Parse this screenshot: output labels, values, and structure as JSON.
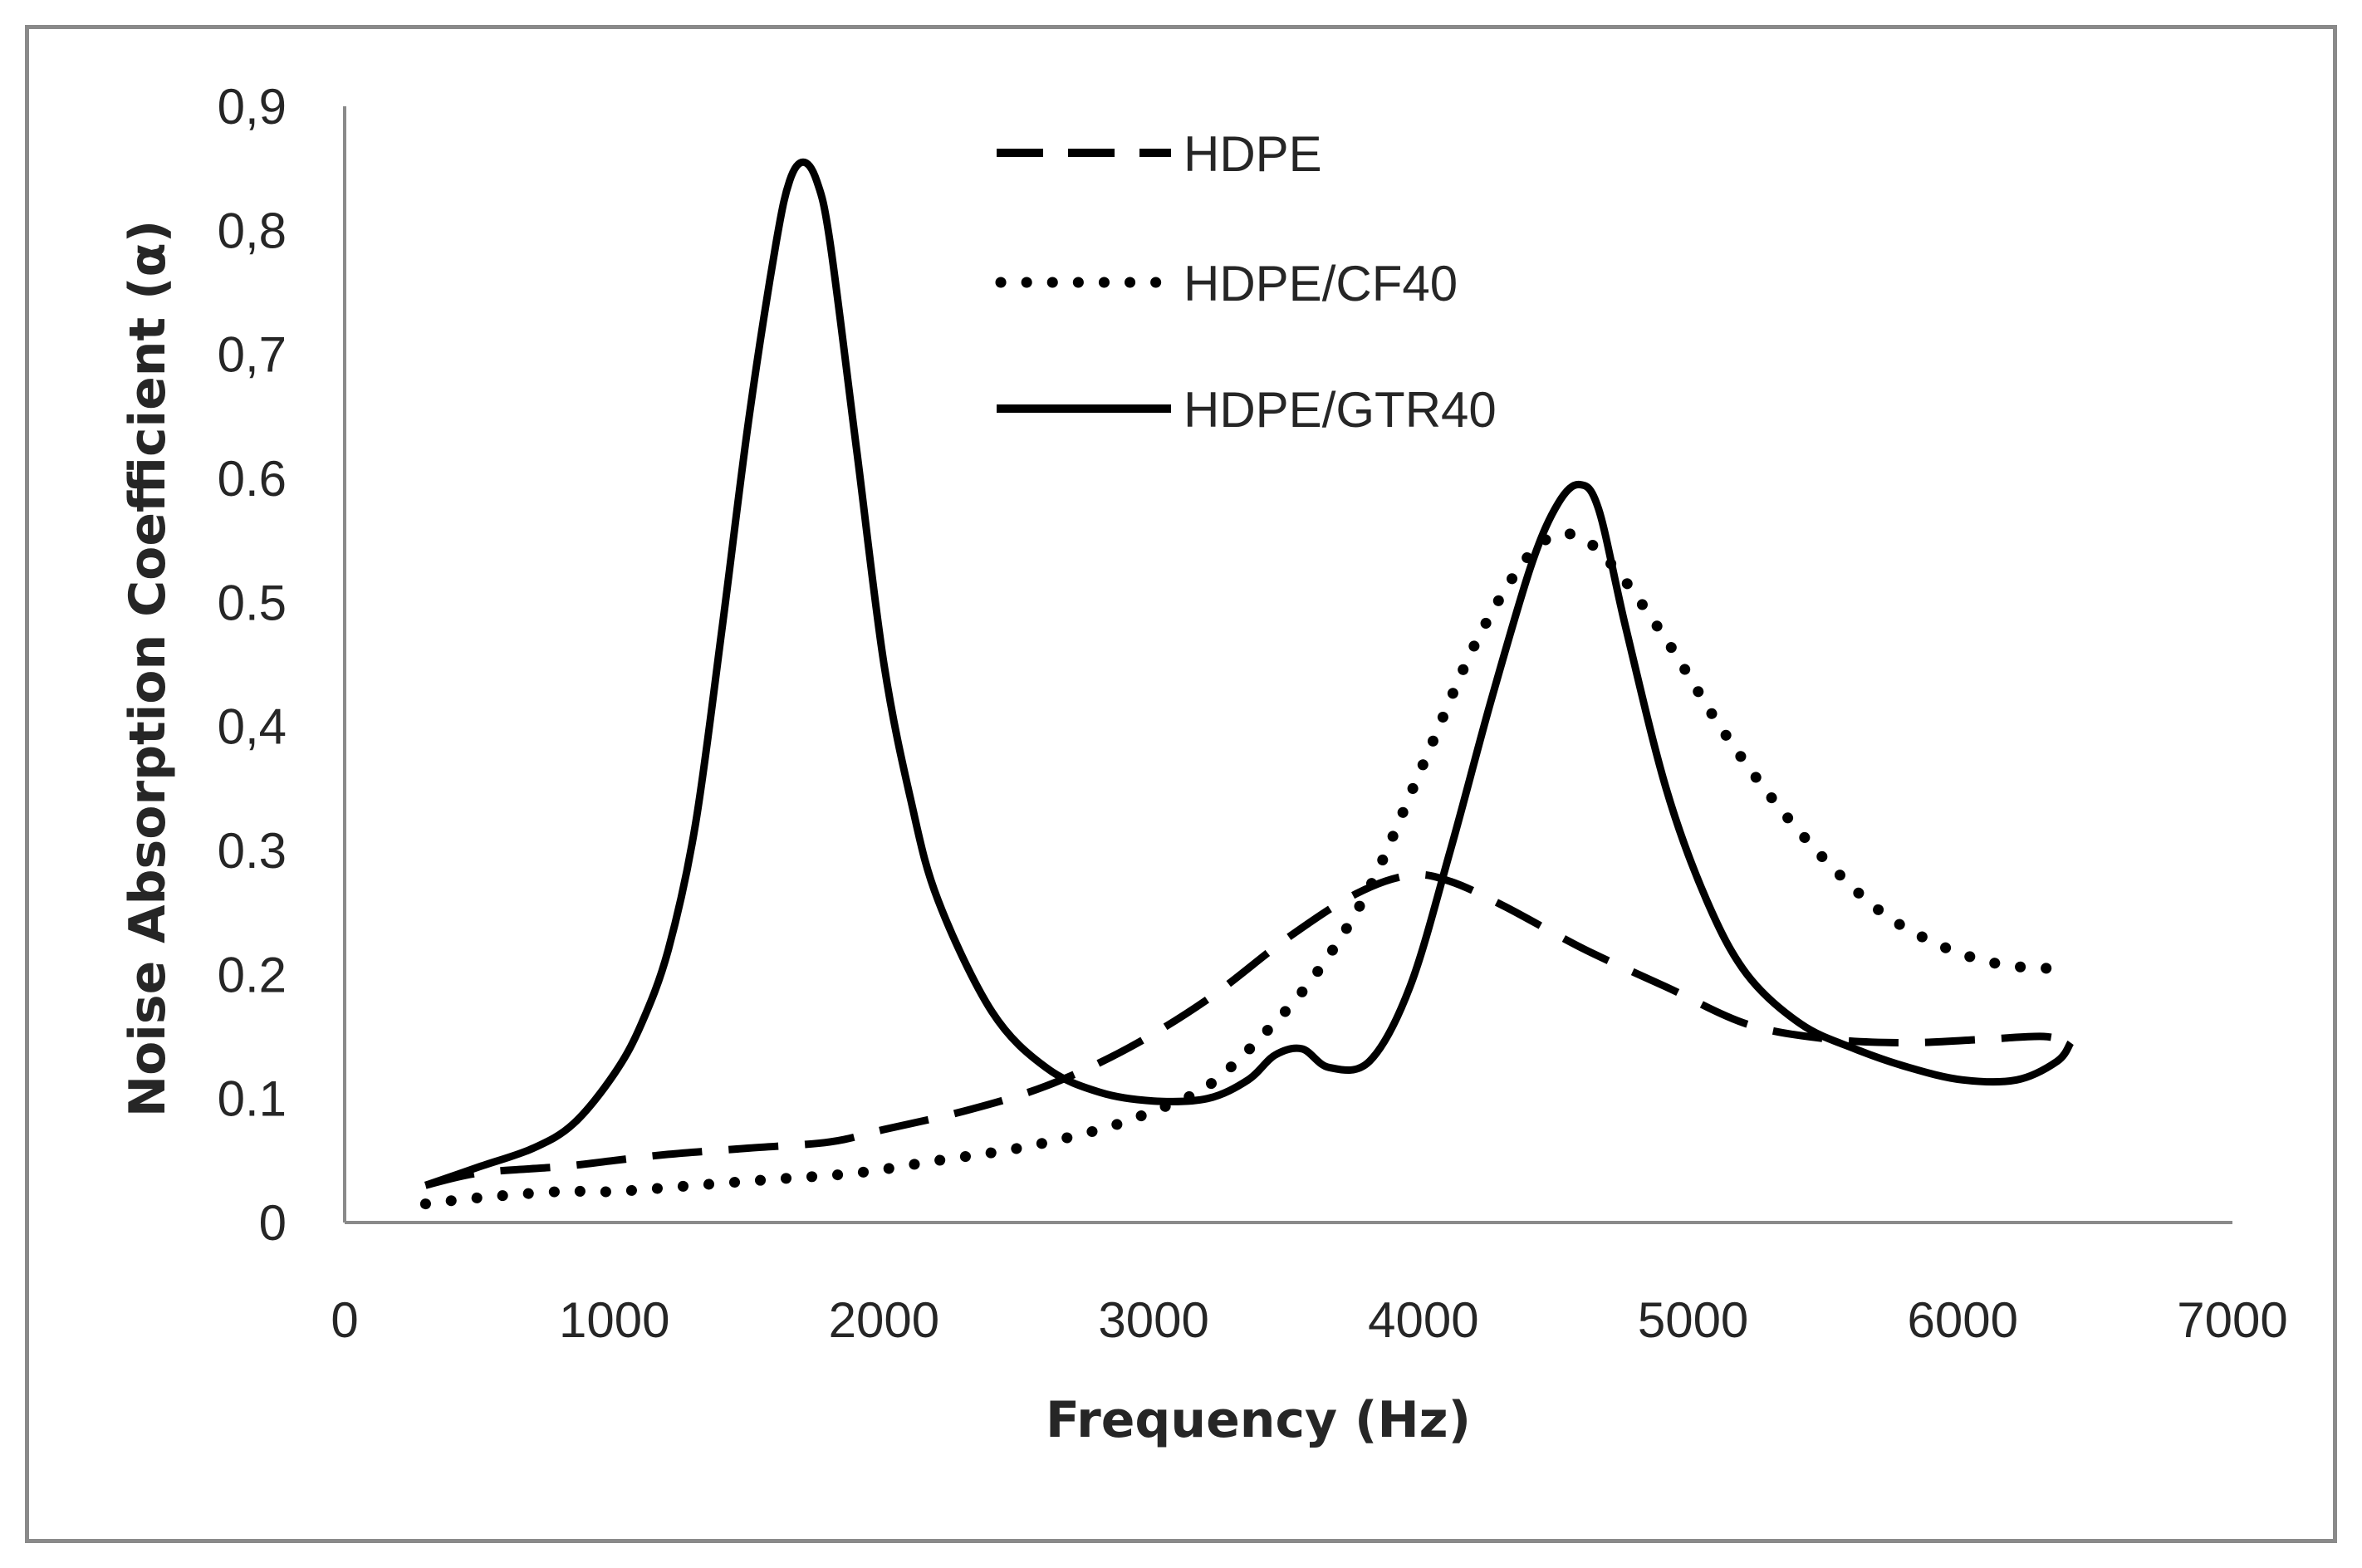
{
  "chart_data": {
    "type": "line",
    "title": "",
    "xlabel": "Frequency (Hz)",
    "ylabel": "Noise Absorption Coefficient (α)",
    "xlim": [
      0,
      7000
    ],
    "ylim": [
      0,
      0.9
    ],
    "x_ticks": [
      "0",
      "1000",
      "2000",
      "3000",
      "4000",
      "5000",
      "6000",
      "7000"
    ],
    "y_ticks": [
      "0",
      "0.1",
      "0.2",
      "0.3",
      "0,4",
      "0.5",
      "0.6",
      "0,7",
      "0,8",
      "0,9"
    ],
    "grid": false,
    "legend_position": "top-center",
    "series": [
      {
        "name": "HDPE",
        "style": "dashed",
        "color": "#000000",
        "x": [
          300,
          500,
          800,
          1000,
          1200,
          1500,
          1800,
          2000,
          2300,
          2600,
          2900,
          3200,
          3500,
          3750,
          3950,
          4100,
          4300,
          4600,
          4900,
          5200,
          5500,
          5800,
          6100,
          6300,
          6400
        ],
        "y": [
          0.03,
          0.04,
          0.045,
          0.05,
          0.055,
          0.06,
          0.065,
          0.075,
          0.09,
          0.11,
          0.14,
          0.18,
          0.23,
          0.265,
          0.28,
          0.275,
          0.255,
          0.22,
          0.19,
          0.16,
          0.148,
          0.145,
          0.148,
          0.15,
          0.145
        ]
      },
      {
        "name": "HDPE/CF40",
        "style": "dotted",
        "color": "#000000",
        "x": [
          300,
          500,
          800,
          1000,
          1300,
          1600,
          1900,
          2200,
          2500,
          2800,
          3000,
          3200,
          3400,
          3600,
          3800,
          4000,
          4200,
          4400,
          4550,
          4700,
          4900,
          5100,
          5300,
          5500,
          5700,
          5900,
          6100,
          6300,
          6400
        ],
        "y": [
          0.015,
          0.02,
          0.025,
          0.025,
          0.03,
          0.035,
          0.04,
          0.05,
          0.06,
          0.075,
          0.09,
          0.11,
          0.15,
          0.2,
          0.27,
          0.37,
          0.47,
          0.54,
          0.555,
          0.53,
          0.47,
          0.4,
          0.34,
          0.29,
          0.25,
          0.225,
          0.21,
          0.205,
          0.21
        ]
      },
      {
        "name": "HDPE/GTR40",
        "style": "solid",
        "color": "#000000",
        "x": [
          300,
          500,
          700,
          850,
          1000,
          1100,
          1200,
          1300,
          1400,
          1500,
          1600,
          1650,
          1700,
          1750,
          1800,
          1900,
          2000,
          2100,
          2200,
          2400,
          2600,
          2800,
          3000,
          3200,
          3350,
          3450,
          3550,
          3650,
          3800,
          3950,
          4100,
          4250,
          4400,
          4500,
          4580,
          4650,
          4750,
          4900,
          5050,
          5200,
          5400,
          5600,
          5800,
          6000,
          6200,
          6350,
          6400
        ],
        "y": [
          0.03,
          0.045,
          0.06,
          0.08,
          0.12,
          0.16,
          0.22,
          0.32,
          0.48,
          0.65,
          0.79,
          0.84,
          0.855,
          0.84,
          0.79,
          0.62,
          0.45,
          0.34,
          0.26,
          0.17,
          0.125,
          0.105,
          0.098,
          0.1,
          0.115,
          0.135,
          0.14,
          0.125,
          0.13,
          0.19,
          0.3,
          0.42,
          0.53,
          0.58,
          0.595,
          0.575,
          0.48,
          0.35,
          0.26,
          0.2,
          0.16,
          0.14,
          0.125,
          0.115,
          0.115,
          0.13,
          0.145
        ]
      }
    ]
  }
}
